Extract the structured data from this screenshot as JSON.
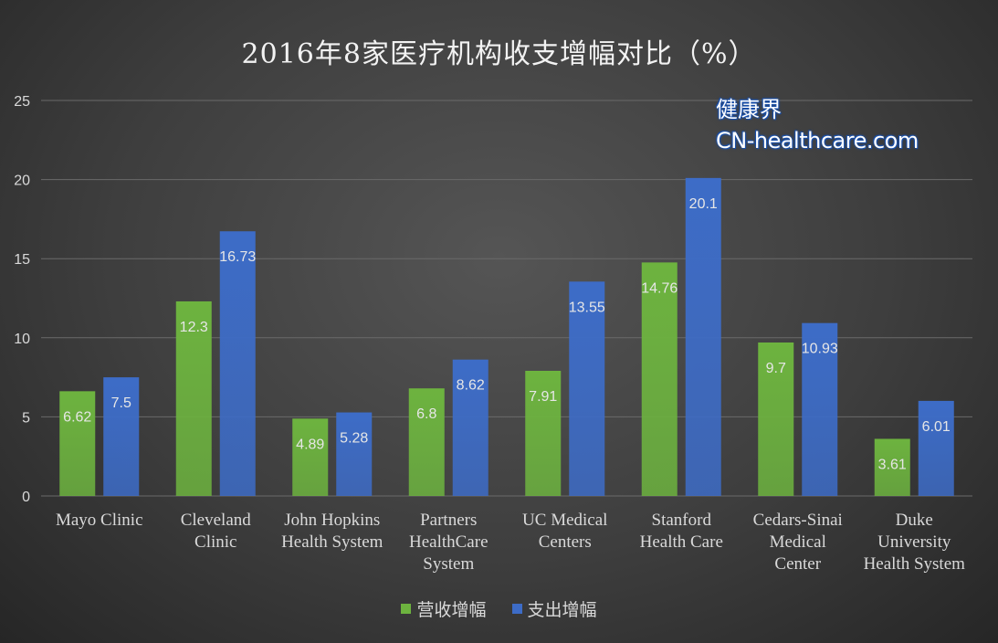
{
  "colors": {
    "revenue": "#6db33f",
    "expense": "#3d6cc7",
    "grid": "#6a6a6a",
    "axis_text": "#d9d9d9",
    "label_text": "#e6e6e6"
  },
  "watermark": {
    "line1": "健康界",
    "line2": "CN-healthcare.com"
  },
  "chart_data": {
    "type": "bar",
    "title": "2016年8家医疗机构收支增幅对比（%）",
    "categories": [
      [
        "Mayo Clinic"
      ],
      [
        "Cleveland",
        "Clinic"
      ],
      [
        "John Hopkins",
        "Health System"
      ],
      [
        "Partners",
        "HealthCare",
        "System"
      ],
      [
        "UC Medical",
        "Centers"
      ],
      [
        "Stanford",
        "Health Care"
      ],
      [
        "Cedars-Sinai",
        "Medical",
        "Center"
      ],
      [
        "Duke",
        "University",
        "Health System"
      ]
    ],
    "series": [
      {
        "name": "营收增幅",
        "values": [
          6.62,
          12.3,
          4.89,
          6.8,
          7.91,
          14.76,
          9.7,
          3.61
        ]
      },
      {
        "name": "支出增幅",
        "values": [
          7.5,
          16.73,
          5.28,
          8.62,
          13.55,
          20.1,
          10.93,
          6.01
        ]
      }
    ],
    "ylim": [
      0,
      25
    ],
    "yticks": [
      0,
      5,
      10,
      15,
      20,
      25
    ],
    "grid": true,
    "legend": "bottom",
    "data_labels": true
  }
}
